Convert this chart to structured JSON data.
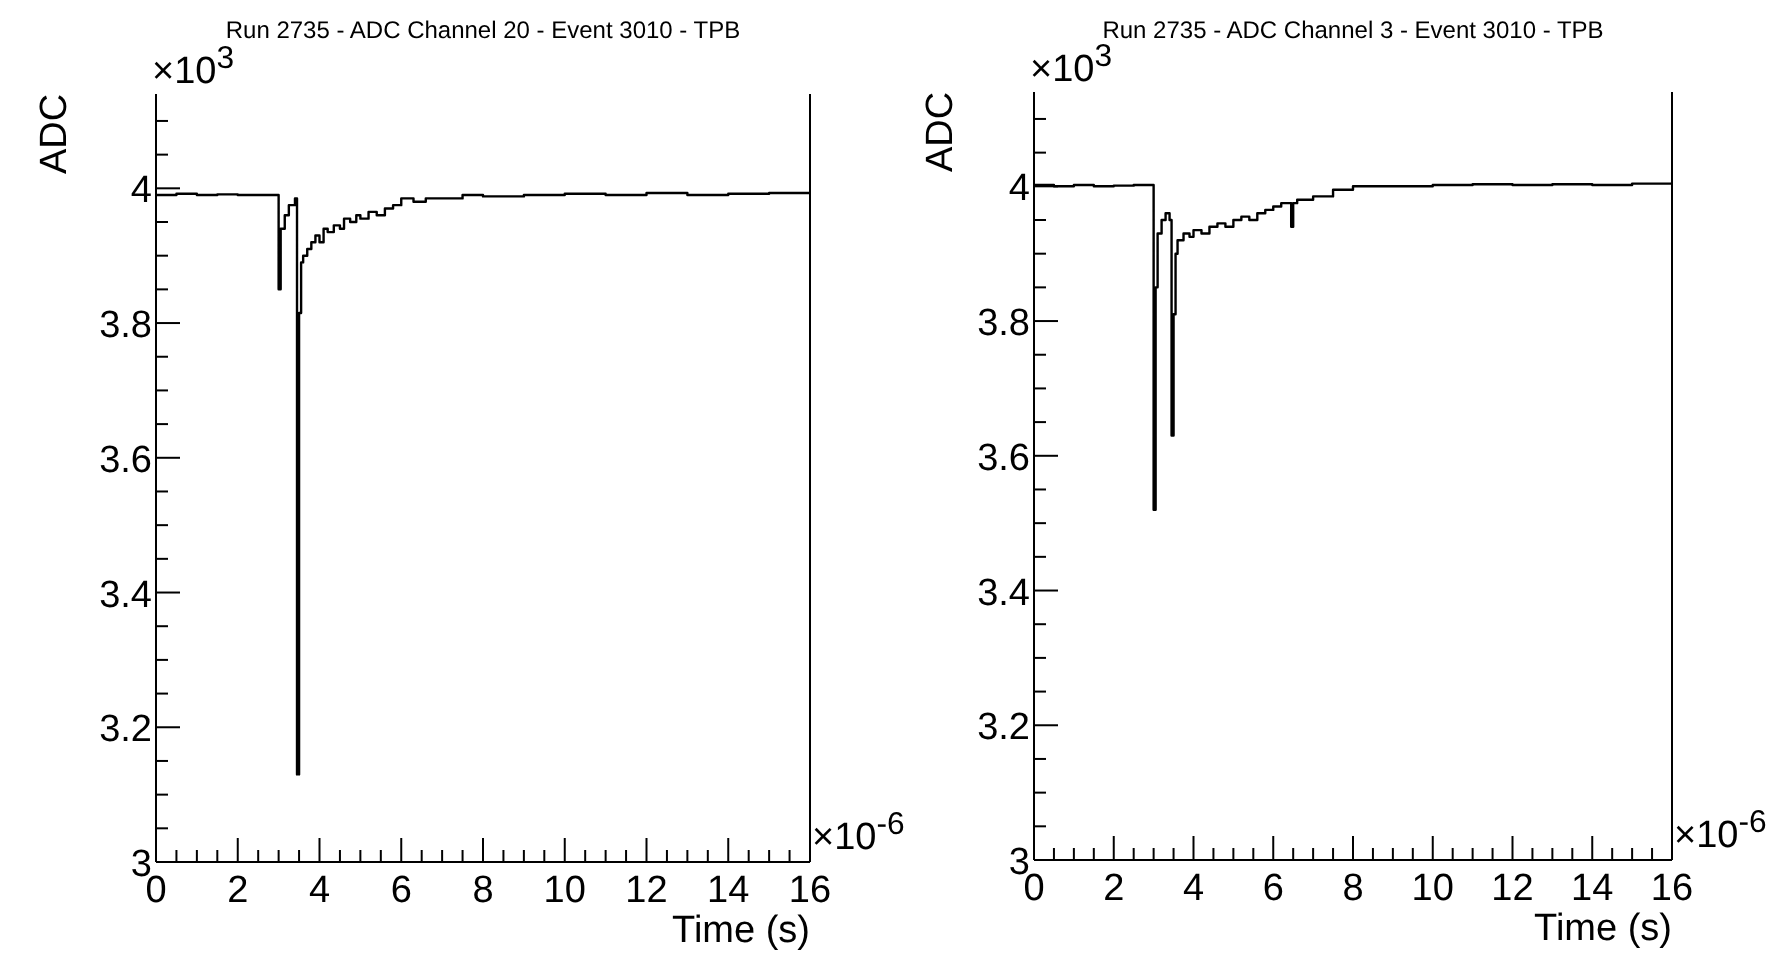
{
  "chart_data": [
    {
      "type": "step",
      "title": "Run 2735 - ADC Channel 20 - Event 3010 - TPB",
      "xlabel": "Time (s)",
      "ylabel": "ADC",
      "annotations": [
        "×10$^{3}$",
        "×10$^{-6}$"
      ],
      "grid": false,
      "xlim": [
        0,
        16
      ],
      "ylim": [
        3,
        4.14
      ],
      "xticks": [
        0,
        {
          "value": 0.5,
          "label": null
        },
        {
          "value": 1,
          "label": null
        },
        {
          "value": 1.5,
          "label": null
        },
        2,
        {
          "value": 2.5,
          "label": null
        },
        {
          "value": 3,
          "label": null
        },
        {
          "value": 3.5,
          "label": null
        },
        4,
        {
          "value": 4.5,
          "label": null
        },
        {
          "value": 5,
          "label": null
        },
        {
          "value": 5.5,
          "label": null
        },
        6,
        {
          "value": 6.5,
          "label": null
        },
        {
          "value": 7,
          "label": null
        },
        {
          "value": 7.5,
          "label": null
        },
        8,
        {
          "value": 8.5,
          "label": null
        },
        {
          "value": 9,
          "label": null
        },
        {
          "value": 9.5,
          "label": null
        },
        10,
        {
          "value": 10.5,
          "label": null
        },
        {
          "value": 11,
          "label": null
        },
        {
          "value": 11.5,
          "label": null
        },
        12,
        {
          "value": 12.5,
          "label": null
        },
        {
          "value": 13,
          "label": null
        },
        {
          "value": 13.5,
          "label": null
        },
        14,
        {
          "value": 14.5,
          "label": null
        },
        {
          "value": 15,
          "label": null
        },
        {
          "value": 15.5,
          "label": null
        },
        16
      ],
      "yticks": [
        3,
        {
          "value": 3.05,
          "label": null
        },
        {
          "value": 3.1,
          "label": null
        },
        {
          "value": 3.15,
          "label": null
        },
        3.2,
        {
          "value": 3.25,
          "label": null
        },
        {
          "value": 3.3,
          "label": null
        },
        {
          "value": 3.35,
          "label": null
        },
        3.4,
        {
          "value": 3.45,
          "label": null
        },
        {
          "value": 3.5,
          "label": null
        },
        {
          "value": 3.55,
          "label": null
        },
        3.6,
        {
          "value": 3.65,
          "label": null
        },
        {
          "value": 3.7,
          "label": null
        },
        {
          "value": 3.75,
          "label": null
        },
        3.8,
        {
          "value": 3.85,
          "label": null
        },
        {
          "value": 3.9,
          "label": null
        },
        {
          "value": 3.95,
          "label": null
        },
        4,
        {
          "value": 4.05,
          "label": null
        },
        {
          "value": 4.1,
          "label": null
        }
      ],
      "x": [
        0,
        0.5,
        1,
        1.5,
        2,
        2.5,
        2.95,
        3.0,
        3.05,
        3.15,
        3.25,
        3.4,
        3.45,
        3.5,
        3.55,
        3.6,
        3.7,
        3.8,
        3.9,
        4.0,
        4.1,
        4.2,
        4.35,
        4.5,
        4.6,
        4.75,
        4.9,
        5.0,
        5.2,
        5.4,
        5.6,
        5.8,
        6.0,
        6.3,
        6.6,
        7,
        7.5,
        8,
        9,
        10,
        11,
        12,
        13,
        14,
        15,
        16
      ],
      "series": [
        {
          "color": "#000000",
          "values": [
            3.99,
            3.992,
            3.99,
            3.991,
            3.99,
            3.99,
            3.99,
            3.85,
            3.94,
            3.96,
            3.975,
            3.985,
            3.13,
            3.815,
            3.89,
            3.9,
            3.91,
            3.92,
            3.93,
            3.92,
            3.94,
            3.935,
            3.945,
            3.94,
            3.955,
            3.95,
            3.96,
            3.955,
            3.965,
            3.96,
            3.97,
            3.975,
            3.985,
            3.98,
            3.985,
            3.985,
            3.99,
            3.988,
            3.99,
            3.992,
            3.99,
            3.993,
            3.99,
            3.992,
            3.993,
            3.993
          ]
        }
      ]
    },
    {
      "type": "step",
      "title": "Run 2735 - ADC Channel 3 - Event 3010 - TPB",
      "xlabel": "Time (s)",
      "ylabel": "ADC",
      "annotations": [
        "×10$^{3}$",
        "×10$^{-6}$"
      ],
      "grid": false,
      "xlim": [
        0,
        16
      ],
      "ylim": [
        3,
        4.14
      ],
      "xticks": [
        0,
        {
          "value": 0.5,
          "label": null
        },
        {
          "value": 1,
          "label": null
        },
        {
          "value": 1.5,
          "label": null
        },
        2,
        {
          "value": 2.5,
          "label": null
        },
        {
          "value": 3,
          "label": null
        },
        {
          "value": 3.5,
          "label": null
        },
        4,
        {
          "value": 4.5,
          "label": null
        },
        {
          "value": 5,
          "label": null
        },
        {
          "value": 5.5,
          "label": null
        },
        6,
        {
          "value": 6.5,
          "label": null
        },
        {
          "value": 7,
          "label": null
        },
        {
          "value": 7.5,
          "label": null
        },
        8,
        {
          "value": 8.5,
          "label": null
        },
        {
          "value": 9,
          "label": null
        },
        {
          "value": 9.5,
          "label": null
        },
        10,
        {
          "value": 10.5,
          "label": null
        },
        {
          "value": 11,
          "label": null
        },
        {
          "value": 11.5,
          "label": null
        },
        12,
        {
          "value": 12.5,
          "label": null
        },
        {
          "value": 13,
          "label": null
        },
        {
          "value": 13.5,
          "label": null
        },
        14,
        {
          "value": 14.5,
          "label": null
        },
        {
          "value": 15,
          "label": null
        },
        {
          "value": 15.5,
          "label": null
        },
        16
      ],
      "yticks": [
        3,
        {
          "value": 3.05,
          "label": null
        },
        {
          "value": 3.1,
          "label": null
        },
        {
          "value": 3.15,
          "label": null
        },
        3.2,
        {
          "value": 3.25,
          "label": null
        },
        {
          "value": 3.3,
          "label": null
        },
        {
          "value": 3.35,
          "label": null
        },
        3.4,
        {
          "value": 3.45,
          "label": null
        },
        {
          "value": 3.5,
          "label": null
        },
        {
          "value": 3.55,
          "label": null
        },
        3.6,
        {
          "value": 3.65,
          "label": null
        },
        {
          "value": 3.7,
          "label": null
        },
        {
          "value": 3.75,
          "label": null
        },
        3.8,
        {
          "value": 3.85,
          "label": null
        },
        {
          "value": 3.9,
          "label": null
        },
        {
          "value": 3.95,
          "label": null
        },
        4,
        {
          "value": 4.05,
          "label": null
        },
        {
          "value": 4.1,
          "label": null
        }
      ],
      "x": [
        0,
        0.5,
        1,
        1.5,
        2,
        2.5,
        3.0,
        3.05,
        3.1,
        3.2,
        3.3,
        3.4,
        3.45,
        3.5,
        3.55,
        3.6,
        3.75,
        3.9,
        4.0,
        4.2,
        4.4,
        4.6,
        4.8,
        5.0,
        5.2,
        5.4,
        5.6,
        5.8,
        6.0,
        6.2,
        6.45,
        6.5,
        6.6,
        7,
        7.5,
        8,
        9,
        10,
        11,
        12,
        13,
        14,
        15,
        16
      ],
      "series": [
        {
          "color": "#000000",
          "values": [
            4.002,
            4.0,
            4.002,
            4.0,
            4.001,
            4.002,
            3.52,
            3.85,
            3.93,
            3.95,
            3.96,
            3.95,
            3.63,
            3.81,
            3.9,
            3.92,
            3.93,
            3.925,
            3.935,
            3.93,
            3.94,
            3.945,
            3.94,
            3.95,
            3.955,
            3.95,
            3.96,
            3.965,
            3.97,
            3.975,
            3.94,
            3.975,
            3.98,
            3.985,
            3.995,
            4.0,
            4.0,
            4.002,
            4.003,
            4.002,
            4.003,
            4.002,
            4.004,
            4.003
          ]
        }
      ]
    }
  ]
}
